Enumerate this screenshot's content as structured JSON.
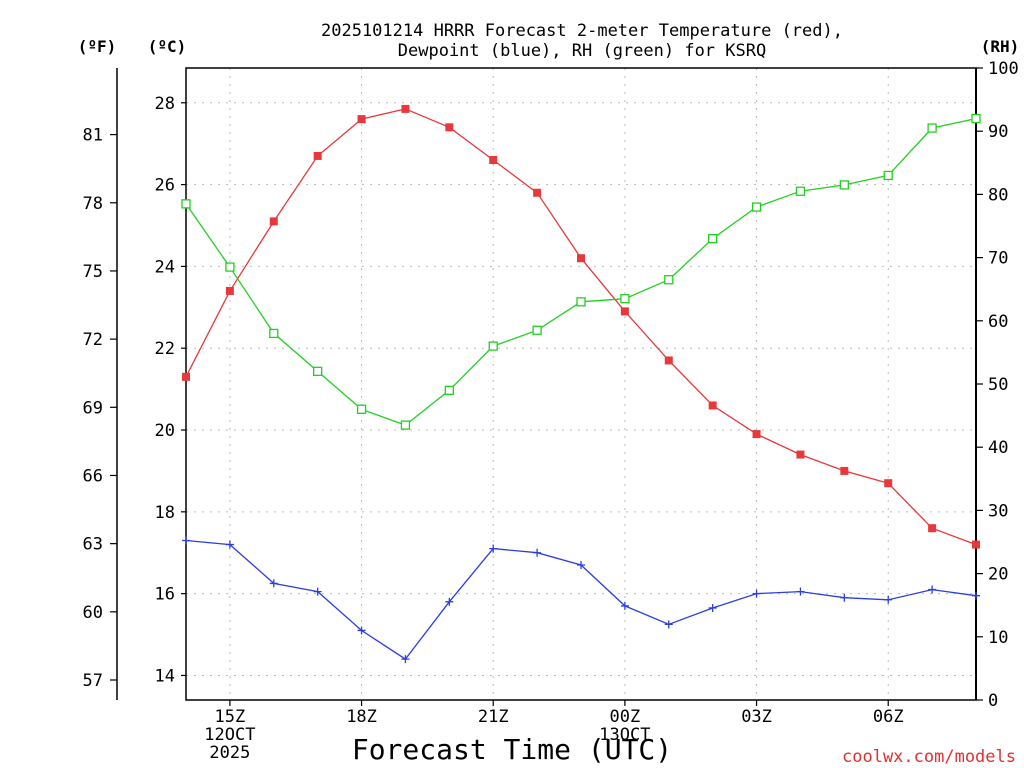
{
  "chart_data": {
    "type": "line",
    "title_line1": "2025101214 HRRR Forecast 2-meter Temperature (red),",
    "title_line2": "Dewpoint (blue), RH (green) for KSRQ",
    "xlabel": "Forecast Time (UTC)",
    "watermark": "coolwx.com/models",
    "unit_f": "(ºF)",
    "unit_c": "(ºC)",
    "unit_rh": "(RH)",
    "x": [
      14,
      15,
      16,
      17,
      18,
      19,
      20,
      21,
      22,
      23,
      24,
      25,
      26,
      27,
      28,
      29,
      30,
      31,
      32
    ],
    "xlim": [
      14,
      32
    ],
    "x_ticks": [
      {
        "x": 15,
        "lines": [
          "15Z",
          "12OCT",
          "2025"
        ]
      },
      {
        "x": 18,
        "lines": [
          "18Z"
        ]
      },
      {
        "x": 21,
        "lines": [
          "21Z"
        ]
      },
      {
        "x": 24,
        "lines": [
          "00Z",
          "13OCT"
        ]
      },
      {
        "x": 27,
        "lines": [
          "03Z"
        ]
      },
      {
        "x": 30,
        "lines": [
          "06Z"
        ]
      }
    ],
    "c_axis": {
      "ylim": [
        13.4,
        28.85
      ],
      "ticks": [
        "14",
        "16",
        "18",
        "20",
        "22",
        "24",
        "26",
        "28"
      ]
    },
    "f_axis": {
      "ticks": [
        "57",
        "60",
        "63",
        "66",
        "69",
        "72",
        "75",
        "78",
        "81"
      ]
    },
    "rh_axis": {
      "ylim": [
        0,
        100
      ],
      "ticks": [
        "0",
        "10",
        "20",
        "30",
        "40",
        "50",
        "60",
        "70",
        "80",
        "90",
        "100"
      ]
    },
    "series": [
      {
        "name": "Temperature",
        "axis": "c",
        "color": "#e8383b",
        "marker": "filled-square",
        "values": [
          21.3,
          23.4,
          25.1,
          26.7,
          27.6,
          27.85,
          27.4,
          26.6,
          25.8,
          24.2,
          22.9,
          21.7,
          20.6,
          19.9,
          19.4,
          19.0,
          18.7,
          17.6,
          17.2
        ]
      },
      {
        "name": "Dewpoint",
        "axis": "c",
        "color": "#2b3ee0",
        "marker": "plus",
        "values": [
          17.3,
          17.2,
          16.25,
          16.05,
          15.1,
          14.4,
          15.8,
          17.1,
          17.0,
          16.7,
          15.7,
          15.25,
          15.65,
          16.0,
          16.05,
          15.9,
          15.85,
          16.1,
          15.95
        ]
      },
      {
        "name": "RH",
        "axis": "rh",
        "color": "#22d022",
        "marker": "open-square",
        "values": [
          78.5,
          68.5,
          58.0,
          52.0,
          46.0,
          43.5,
          49.0,
          56.0,
          58.5,
          63.0,
          63.5,
          66.5,
          73.0,
          78.0,
          80.5,
          81.5,
          83.0,
          90.5,
          92.0
        ]
      }
    ]
  }
}
